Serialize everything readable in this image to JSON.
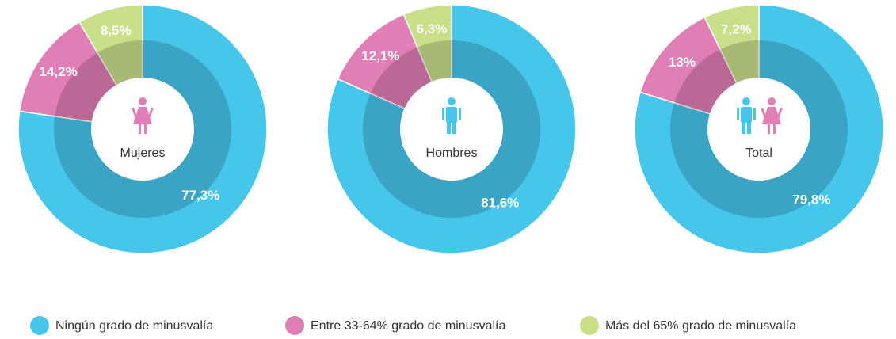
{
  "chart_data": [
    {
      "type": "pie",
      "title": "Mujeres",
      "values": [
        77.3,
        14.2,
        8.5
      ],
      "value_labels": [
        "77,3%",
        "14,2%",
        "8,5%"
      ]
    },
    {
      "type": "pie",
      "title": "Hombres",
      "values": [
        81.6,
        12.1,
        6.3
      ],
      "value_labels": [
        "81,6%",
        "12,1%",
        "6,3%"
      ]
    },
    {
      "type": "pie",
      "title": "Total",
      "values": [
        79.8,
        13,
        7.2
      ],
      "value_labels": [
        "79,8%",
        "13%",
        "7,2%"
      ]
    }
  ],
  "legend": {
    "labels": [
      "Ningún grado de minusvalía",
      "Entre 33-64% grado de minusvalía",
      "Más del 65% grado de minusvalía"
    ],
    "colors": [
      "#47c6ec",
      "#e07fb5",
      "#c9df8a"
    ]
  }
}
